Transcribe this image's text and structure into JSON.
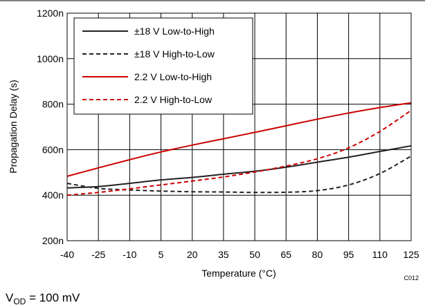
{
  "chart_data": {
    "type": "line",
    "xlabel": "Temperature (°C)",
    "ylabel": "Propagation Delay (s)",
    "x": [
      -40,
      -25,
      -10,
      5,
      20,
      35,
      50,
      65,
      80,
      95,
      110,
      125
    ],
    "x_tick_labels": [
      "-40",
      "-25",
      "-10",
      "5",
      "20",
      "35",
      "50",
      "65",
      "80",
      "95",
      "110",
      "125"
    ],
    "xlim": [
      -40,
      125
    ],
    "ylim": [
      200,
      1200
    ],
    "y_ticks": [
      200,
      400,
      600,
      800,
      1000,
      1200
    ],
    "y_tick_labels": [
      "200n",
      "400n",
      "600n",
      "800n",
      "1000n",
      "1200n"
    ],
    "grid": true,
    "legend_position": "top-left",
    "series": [
      {
        "name": "±18 V Low-to-High",
        "color": "#231f20",
        "dash": "solid",
        "values": [
          432,
          438,
          452,
          467,
          478,
          492,
          505,
          523,
          545,
          567,
          592,
          617
        ]
      },
      {
        "name": "±18 V High-to-Low",
        "color": "#231f20",
        "dash": "dashed",
        "values": [
          452,
          430,
          423,
          418,
          415,
          414,
          412,
          413,
          420,
          445,
          495,
          572
        ]
      },
      {
        "name": "2.2 V Low-to-High",
        "color": "#cc0000",
        "dash": "solid",
        "values": [
          483,
          520,
          556,
          590,
          620,
          648,
          676,
          705,
          734,
          761,
          785,
          806
        ]
      },
      {
        "name": "2.2 V High-to-Low",
        "color": "#cc0000",
        "dash": "dashed",
        "values": [
          400,
          412,
          428,
          445,
          462,
          480,
          502,
          528,
          560,
          608,
          680,
          773
        ]
      }
    ]
  },
  "figure_code": "C012",
  "condition_note": {
    "symbol": "V",
    "subscript": "OD",
    "value": " = 100 mV"
  }
}
